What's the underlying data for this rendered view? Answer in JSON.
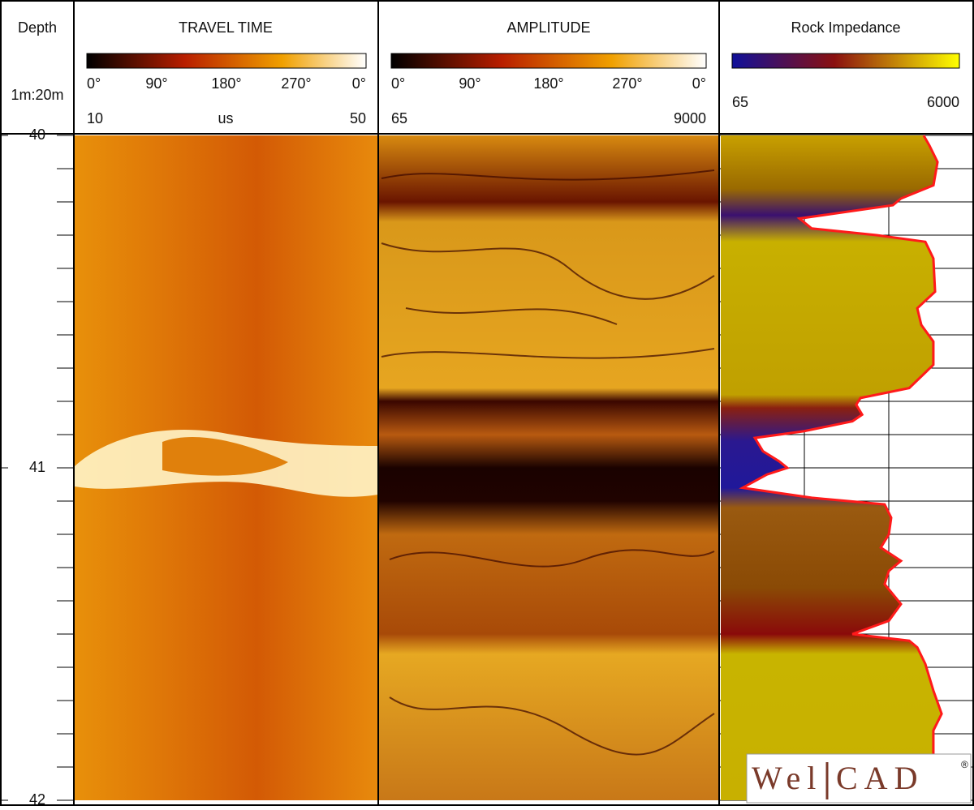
{
  "chart_data": {
    "type": "well-log",
    "depth": {
      "title": "Depth",
      "scale_label": "1m:20m",
      "ylim": [
        40,
        42
      ],
      "yticks": [
        40,
        41,
        42
      ]
    },
    "travel_time": {
      "title": "TRAVEL TIME",
      "angle_labels": [
        "0°",
        "90°",
        "180°",
        "270°",
        "0°"
      ],
      "scale": [
        10,
        50
      ],
      "unit": "us"
    },
    "amplitude": {
      "title": "AMPLITUDE",
      "angle_labels": [
        "0°",
        "90°",
        "180°",
        "270°",
        "0°"
      ],
      "scale": [
        65,
        9000
      ]
    },
    "rock_impedance": {
      "title": "Rock Impedance",
      "scale": [
        65,
        6000
      ],
      "color": "#ff1a1a",
      "depth": [
        40.0,
        40.03,
        40.08,
        40.15,
        40.19,
        40.21,
        40.25,
        40.28,
        40.3,
        40.32,
        40.37,
        40.47,
        40.52,
        40.57,
        40.62,
        40.69,
        40.76,
        40.79,
        40.81,
        40.84,
        40.86,
        40.89,
        40.91,
        40.95,
        40.98,
        41.0,
        41.02,
        41.06,
        41.09,
        41.11,
        41.15,
        41.2,
        41.24,
        41.28,
        41.31,
        41.35,
        41.41,
        41.46,
        41.5,
        41.52,
        41.54,
        41.59,
        41.67,
        41.74,
        41.79,
        41.84
      ],
      "values": [
        4850,
        4985,
        5178,
        5082,
        4315,
        4125,
        1922,
        2210,
        3740,
        4890,
        5080,
        5120,
        4700,
        4795,
        5080,
        5080,
        4510,
        3360,
        3260,
        3400,
        3170,
        2020,
        870,
        1060,
        1440,
        1635,
        1155,
        580,
        2210,
        3930,
        4085,
        4030,
        3840,
        4315,
        4030,
        3930,
        4315,
        4030,
        3170,
        4510,
        4700,
        4890,
        5080,
        5275,
        5080,
        5080
      ]
    },
    "logo": [
      "Wel",
      "CAD",
      "®"
    ]
  }
}
